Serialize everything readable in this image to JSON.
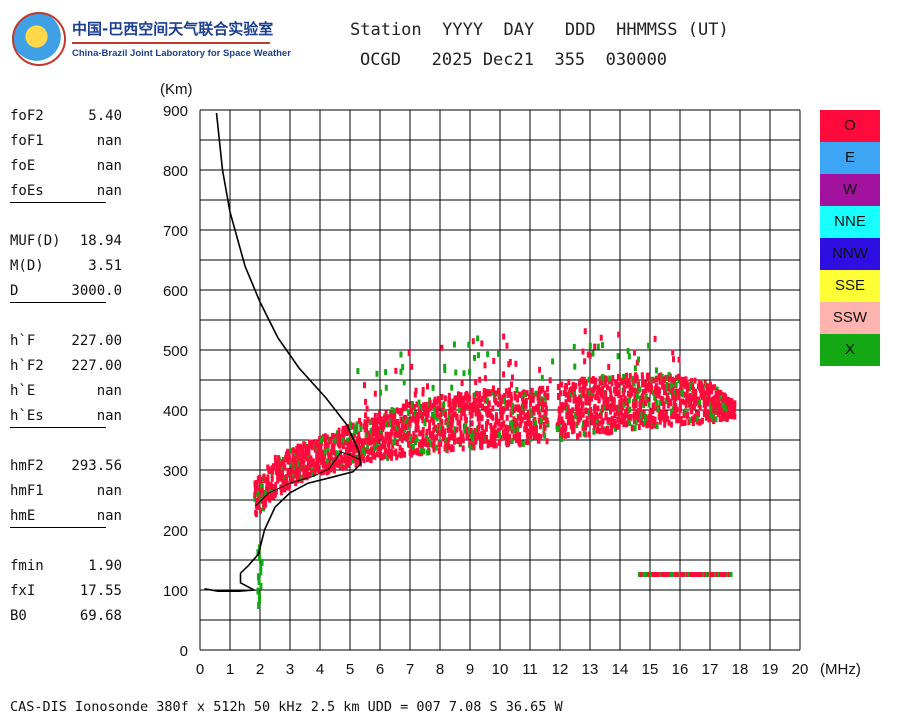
{
  "logo": {
    "name_cn": "中国-巴西空间天气联合实验室",
    "name_en": "China-Brazil Joint Laboratory for Space Weather"
  },
  "header": {
    "labels": "Station  YYYY  DAY   DDD  HHMMSS (UT)",
    "values": "OCGD   2025 Dec21  355  030000"
  },
  "parameters": [
    {
      "group": [
        {
          "name": "foF2",
          "value": "5.40"
        },
        {
          "name": "foF1",
          "value": "nan"
        },
        {
          "name": "foE",
          "value": "nan"
        },
        {
          "name": "foEs",
          "value": "nan"
        }
      ]
    },
    {
      "group": [
        {
          "name": "MUF(D)",
          "value": "18.94"
        },
        {
          "name": "M(D)",
          "value": "3.51"
        },
        {
          "name": "D",
          "value": "3000.0"
        }
      ]
    },
    {
      "group": [
        {
          "name": "h`F",
          "value": "227.00"
        },
        {
          "name": "h`F2",
          "value": "227.00"
        },
        {
          "name": "h`E",
          "value": "nan"
        },
        {
          "name": "h`Es",
          "value": "nan"
        }
      ]
    },
    {
      "group": [
        {
          "name": "hmF2",
          "value": "293.56"
        },
        {
          "name": "hmF1",
          "value": "nan"
        },
        {
          "name": "hmE",
          "value": "nan"
        }
      ]
    },
    {
      "group": [
        {
          "name": "fmin",
          "value": "1.90"
        },
        {
          "name": "fxI",
          "value": "17.55"
        },
        {
          "name": "B0",
          "value": "69.68"
        }
      ]
    }
  ],
  "legend": [
    {
      "label": "O",
      "color": "#ff0a3c"
    },
    {
      "label": "E",
      "color": "#3ca6f5"
    },
    {
      "label": "W",
      "color": "#a3129e"
    },
    {
      "label": "NNE",
      "color": "#18ffff"
    },
    {
      "label": "NNW",
      "color": "#2e0ee0"
    },
    {
      "label": "SSE",
      "color": "#ffff36"
    },
    {
      "label": "SSW",
      "color": "#ffb3ae"
    },
    {
      "label": "X",
      "color": "#14a814"
    }
  ],
  "footer": "CAS-DIS Ionosonde 380f x 512h 50 kHz 2.5 km UDD = 007 7.08 S 36.65 W",
  "chart_data": {
    "type": "scatter",
    "title": "",
    "xlabel": "(MHz)",
    "ylabel": "(Km)",
    "xlim": [
      0,
      20
    ],
    "ylim": [
      0,
      900
    ],
    "x_ticks": [
      "0",
      "1",
      "2",
      "3",
      "4",
      "5",
      "6",
      "7",
      "8",
      "9",
      "10",
      "11",
      "12",
      "13",
      "14",
      "15",
      "16",
      "17",
      "18",
      "19",
      "20"
    ],
    "y_ticks": [
      "0",
      "100",
      "200",
      "300",
      "400",
      "500",
      "600",
      "700",
      "800",
      "900"
    ],
    "grid": true,
    "o_trace_envelope": [
      {
        "f": 1.8,
        "h_low": 228,
        "h_high": 285
      },
      {
        "f": 2.5,
        "h_low": 262,
        "h_high": 328
      },
      {
        "f": 3.5,
        "h_low": 292,
        "h_high": 350
      },
      {
        "f": 4.5,
        "h_low": 305,
        "h_high": 370
      },
      {
        "f": 5.5,
        "h_low": 318,
        "h_high": 392
      },
      {
        "f": 7.0,
        "h_low": 330,
        "h_high": 415
      },
      {
        "f": 8.5,
        "h_low": 340,
        "h_high": 432
      },
      {
        "f": 10.0,
        "h_low": 345,
        "h_high": 438
      },
      {
        "f": 11.5,
        "h_low": 350,
        "h_high": 442
      },
      {
        "f": 12.5,
        "h_low": 360,
        "h_high": 455
      },
      {
        "f": 14.0,
        "h_low": 370,
        "h_high": 462
      },
      {
        "f": 15.5,
        "h_low": 380,
        "h_high": 465
      },
      {
        "f": 17.0,
        "h_low": 385,
        "h_high": 448
      },
      {
        "f": 17.8,
        "h_low": 392,
        "h_high": 415
      }
    ],
    "x_trace_scattered_fraction": 0.14,
    "low_height_trace": {
      "f_start": 14.6,
      "f_end": 17.7,
      "h": 125
    },
    "e_region_echo": {
      "f": 1.95,
      "h_low": 80,
      "h_high": 180
    },
    "electron_density_profile": [
      {
        "f": 0.55,
        "h": 895
      },
      {
        "f": 0.75,
        "h": 800
      },
      {
        "f": 1.0,
        "h": 730
      },
      {
        "f": 1.5,
        "h": 640
      },
      {
        "f": 2.0,
        "h": 580
      },
      {
        "f": 2.6,
        "h": 520
      },
      {
        "f": 3.3,
        "h": 470
      },
      {
        "f": 4.2,
        "h": 420
      },
      {
        "f": 4.9,
        "h": 375
      },
      {
        "f": 5.3,
        "h": 330
      },
      {
        "f": 5.35,
        "h": 310
      },
      {
        "f": 5.1,
        "h": 297
      },
      {
        "f": 4.4,
        "h": 288
      },
      {
        "f": 3.6,
        "h": 278
      },
      {
        "f": 3.0,
        "h": 262
      },
      {
        "f": 2.5,
        "h": 238
      },
      {
        "f": 2.15,
        "h": 200
      },
      {
        "f": 1.95,
        "h": 160
      },
      {
        "f": 1.6,
        "h": 140
      },
      {
        "f": 1.35,
        "h": 128
      },
      {
        "f": 1.35,
        "h": 112
      },
      {
        "f": 1.8,
        "h": 100
      },
      {
        "f": 1.3,
        "h": 98
      },
      {
        "f": 0.6,
        "h": 98
      },
      {
        "f": 0.15,
        "h": 102
      }
    ],
    "virtual_height_curve": [
      {
        "f": 1.85,
        "h": 240
      },
      {
        "f": 2.3,
        "h": 262
      },
      {
        "f": 3.0,
        "h": 278
      },
      {
        "f": 3.8,
        "h": 290
      },
      {
        "f": 4.3,
        "h": 302
      },
      {
        "f": 4.7,
        "h": 330
      },
      {
        "f": 5.0,
        "h": 325
      },
      {
        "f": 5.3,
        "h": 318
      }
    ]
  }
}
